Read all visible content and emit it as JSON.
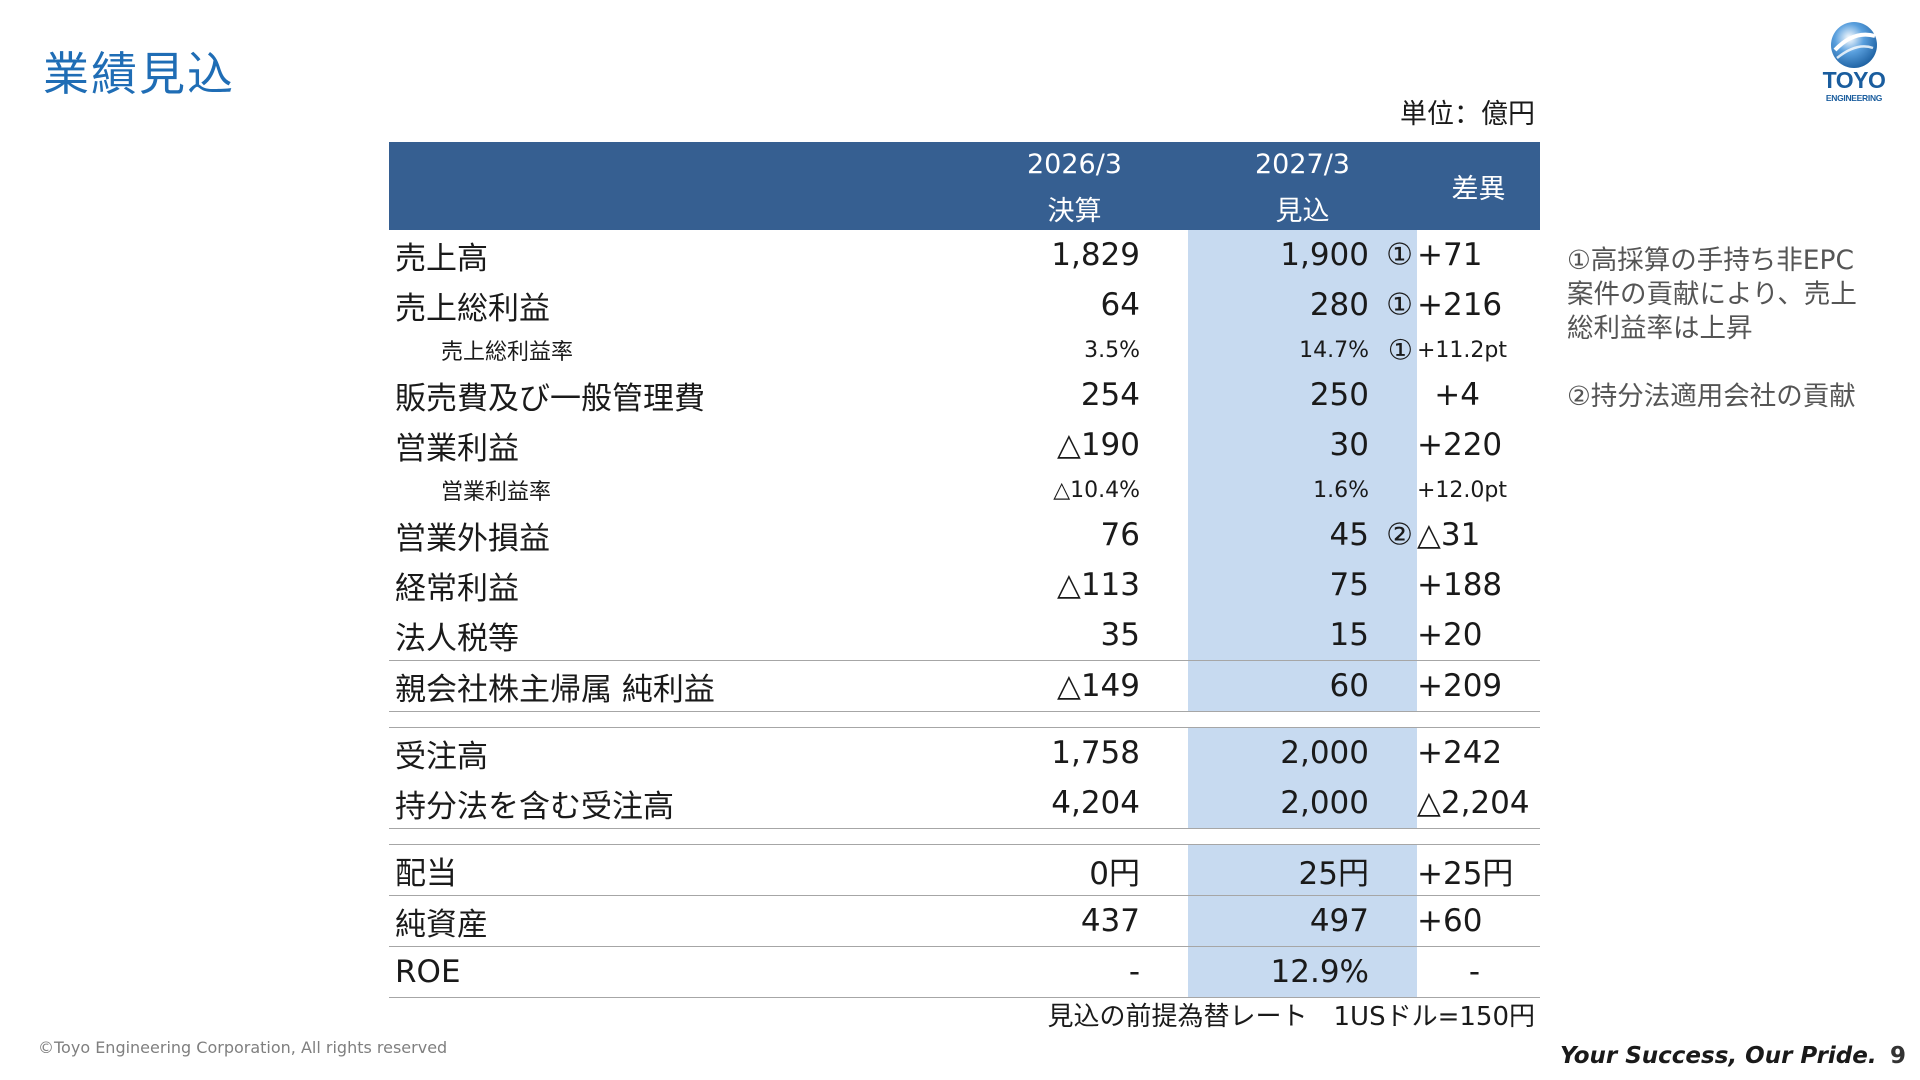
{
  "header": {
    "title": "業績見込",
    "logo_text": "TOYO",
    "logo_subtext": "ENGINEERING",
    "unit": "単位：億円"
  },
  "colors": {
    "title_blue": "#1f6db5",
    "table_header_bg": "#365f91",
    "forecast_column_bg": "#c7daf0",
    "divider": "#a6a6a6",
    "logo_blue": "#1a5d9e"
  },
  "table": {
    "headers": {
      "prev_period": "2026/3",
      "prev_kind": "決算",
      "forecast_period": "2027/3",
      "forecast_kind": "見込",
      "diff": "差異"
    },
    "pl_rows": [
      {
        "label": "売上高",
        "prev": "1,829",
        "forecast": "1,900",
        "marker": "①",
        "diff": "+71"
      },
      {
        "label": "売上総利益",
        "prev": "64",
        "forecast": "280",
        "marker": "①",
        "diff": "+216"
      },
      {
        "label": "売上総利益率",
        "prev": "3.5%",
        "forecast": "14.7%",
        "marker": "①",
        "diff": "+11.2pt"
      },
      {
        "label": "販売費及び一般管理費",
        "prev": "254",
        "forecast": "250",
        "marker": "",
        "diff": "+4"
      },
      {
        "label": "営業利益",
        "prev": "△190",
        "forecast": "30",
        "marker": "",
        "diff": "+220"
      },
      {
        "label": "営業利益率",
        "prev": "△10.4%",
        "forecast": "1.6%",
        "marker": "",
        "diff": "+12.0pt"
      },
      {
        "label": "営業外損益",
        "prev": "76",
        "forecast": "45",
        "marker": "②",
        "diff": "△31"
      },
      {
        "label": "経常利益",
        "prev": "△113",
        "forecast": "75",
        "marker": "",
        "diff": "+188"
      },
      {
        "label": "法人税等",
        "prev": "35",
        "forecast": "15",
        "marker": "",
        "diff": "+20"
      },
      {
        "label": "親会社株主帰属 純利益",
        "prev": "△149",
        "forecast": "60",
        "marker": "",
        "diff": "+209"
      }
    ],
    "order_rows": [
      {
        "label": "受注高",
        "prev": "1,758",
        "forecast": "2,000",
        "diff": "+242"
      },
      {
        "label": "持分法を含む受注高",
        "prev": "4,204",
        "forecast": "2,000",
        "diff": "△2,204"
      }
    ],
    "other_rows": [
      {
        "label": "配当",
        "prev": "0円",
        "forecast": "25円",
        "diff": "+25円"
      },
      {
        "label": "純資産",
        "prev": "437",
        "forecast": "497",
        "diff": "+60"
      },
      {
        "label": "ROE",
        "prev": "-",
        "forecast": "12.9%",
        "diff": "-"
      }
    ]
  },
  "fx_note": "見込の前提為替レート　1USドル=150円",
  "side_notes": {
    "note1": "①高採算の手持ち非EPC\n案件の貢献により、売上\n総利益率は上昇",
    "note2": "②持分法適用会社の貢献"
  },
  "footer": {
    "copyright": "©Toyo Engineering Corporation, All rights reserved",
    "slogan": "Your Success, Our Pride.",
    "page_number": "9"
  }
}
